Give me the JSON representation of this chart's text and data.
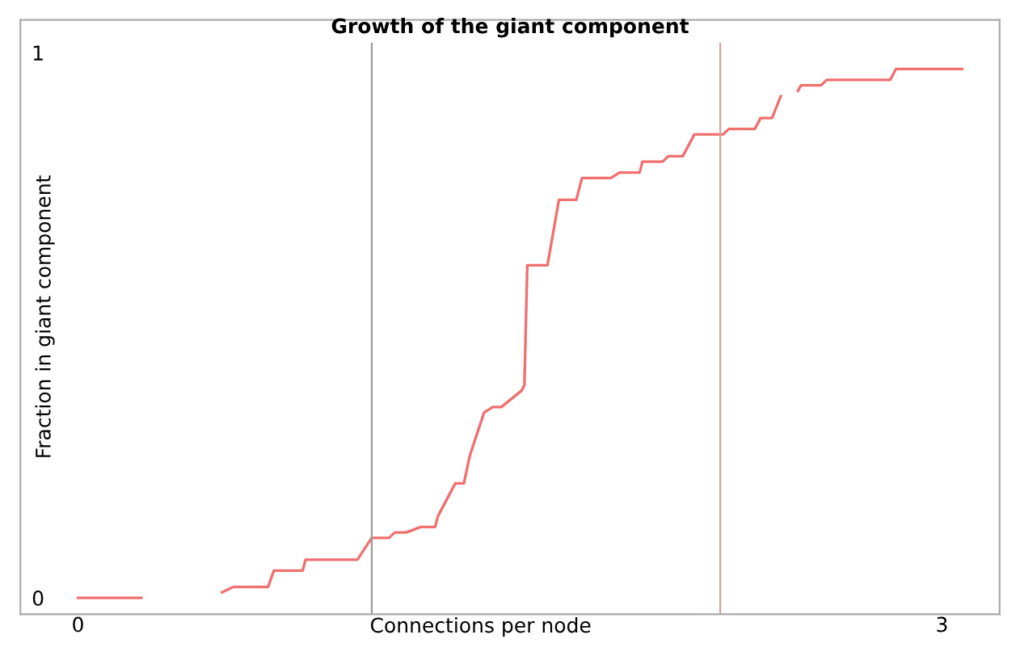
{
  "chart_data": {
    "type": "line",
    "title": "Growth of the giant component",
    "xlabel": "Connections per node",
    "ylabel": "Fraction in giant component",
    "xlim": [
      -0.2,
      3.2
    ],
    "ylim": [
      -0.03,
      1.06
    ],
    "xticks": [
      0,
      3
    ],
    "yticks": [
      0,
      1
    ],
    "grid": false,
    "marker": "none",
    "line_style": "solid",
    "series": [
      {
        "color": "#f07070",
        "x": [
          0,
          0.22,
          null,
          0.5,
          0.54,
          0.66,
          0.68,
          0.78,
          0.79,
          0.97,
          1.02,
          1.08,
          1.1,
          1.14,
          1.19,
          1.24,
          1.25,
          1.31,
          1.34,
          1.36,
          1.41,
          1.44,
          1.47,
          1.54,
          1.55,
          1.56,
          1.63,
          1.67,
          1.73,
          1.75,
          1.85,
          1.88,
          1.95,
          1.96,
          2.03,
          2.05,
          2.1,
          2.14,
          2.24,
          2.26,
          2.35,
          2.37,
          2.41,
          2.44,
          null,
          2.5,
          2.51,
          2.58,
          2.6,
          2.82,
          2.84,
          3.07
        ],
        "values": [
          0,
          0,
          null,
          0.01,
          0.02,
          0.02,
          0.05,
          0.05,
          0.07,
          0.07,
          0.11,
          0.11,
          0.12,
          0.12,
          0.13,
          0.13,
          0.15,
          0.21,
          0.21,
          0.26,
          0.34,
          0.35,
          0.35,
          0.38,
          0.39,
          0.61,
          0.61,
          0.73,
          0.73,
          0.77,
          0.77,
          0.78,
          0.78,
          0.8,
          0.8,
          0.81,
          0.81,
          0.85,
          0.85,
          0.86,
          0.86,
          0.88,
          0.88,
          0.92,
          null,
          0.93,
          0.94,
          0.94,
          0.95,
          0.95,
          0.97,
          0.97
        ]
      }
    ],
    "ref_lines": [
      {
        "axis": "x",
        "value": 1.02,
        "color": "#999999"
      },
      {
        "axis": "x",
        "value": 2.23,
        "color": "#d8a0a0"
      }
    ]
  }
}
